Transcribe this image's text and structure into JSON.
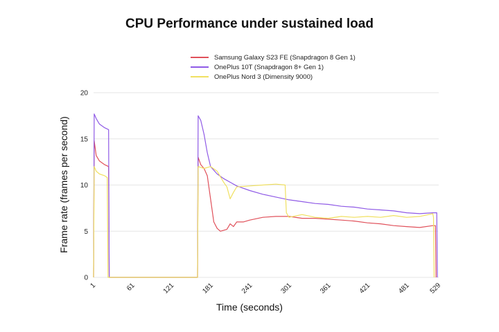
{
  "chart_data": {
    "type": "line",
    "title": "CPU Performance under sustained load",
    "xlabel": "Time (seconds)",
    "ylabel": "Frame rate (frames per second)",
    "xlim": [
      1,
      529
    ],
    "ylim": [
      0,
      20
    ],
    "x_ticks": [
      1,
      61,
      121,
      181,
      241,
      301,
      361,
      421,
      481,
      529
    ],
    "y_ticks": [
      0,
      5,
      10,
      15,
      20
    ],
    "grid": "horizontal",
    "legend_position": "top-right",
    "series": [
      {
        "name": "Samsung Galaxy S23 FE (Snapdragon 8 Gen 1)",
        "color": "#e0505a",
        "points": [
          [
            1,
            0
          ],
          [
            2,
            14.8
          ],
          [
            5,
            13.2
          ],
          [
            10,
            12.6
          ],
          [
            18,
            12.2
          ],
          [
            24,
            12.0
          ],
          [
            25,
            0
          ],
          [
            160,
            0
          ],
          [
            161,
            13.0
          ],
          [
            165,
            12.2
          ],
          [
            170,
            11.8
          ],
          [
            175,
            11.0
          ],
          [
            180,
            8.5
          ],
          [
            185,
            6.0
          ],
          [
            190,
            5.3
          ],
          [
            195,
            5.0
          ],
          [
            200,
            5.1
          ],
          [
            205,
            5.2
          ],
          [
            210,
            5.8
          ],
          [
            215,
            5.5
          ],
          [
            220,
            6.0
          ],
          [
            230,
            6.0
          ],
          [
            240,
            6.2
          ],
          [
            260,
            6.5
          ],
          [
            280,
            6.6
          ],
          [
            300,
            6.6
          ],
          [
            320,
            6.4
          ],
          [
            340,
            6.4
          ],
          [
            360,
            6.3
          ],
          [
            380,
            6.2
          ],
          [
            400,
            6.1
          ],
          [
            420,
            5.9
          ],
          [
            440,
            5.8
          ],
          [
            460,
            5.6
          ],
          [
            480,
            5.5
          ],
          [
            500,
            5.4
          ],
          [
            520,
            5.6
          ],
          [
            524,
            5.6
          ],
          [
            525,
            0
          ]
        ]
      },
      {
        "name": "OnePlus 10T (Snapdragon 8+ Gen 1)",
        "color": "#8f5ae6",
        "points": [
          [
            1,
            0
          ],
          [
            2,
            17.7
          ],
          [
            5,
            17.2
          ],
          [
            10,
            16.6
          ],
          [
            18,
            16.2
          ],
          [
            24,
            16.0
          ],
          [
            25,
            0
          ],
          [
            160,
            0
          ],
          [
            161,
            17.5
          ],
          [
            165,
            17.0
          ],
          [
            170,
            15.5
          ],
          [
            175,
            13.5
          ],
          [
            180,
            12.0
          ],
          [
            190,
            11.2
          ],
          [
            200,
            10.7
          ],
          [
            210,
            10.3
          ],
          [
            220,
            9.9
          ],
          [
            240,
            9.4
          ],
          [
            260,
            9.0
          ],
          [
            280,
            8.7
          ],
          [
            300,
            8.4
          ],
          [
            320,
            8.2
          ],
          [
            340,
            8.0
          ],
          [
            360,
            7.9
          ],
          [
            380,
            7.7
          ],
          [
            400,
            7.6
          ],
          [
            420,
            7.4
          ],
          [
            440,
            7.3
          ],
          [
            460,
            7.2
          ],
          [
            480,
            7.0
          ],
          [
            500,
            6.9
          ],
          [
            520,
            7.0
          ],
          [
            526,
            7.0
          ],
          [
            527,
            0
          ]
        ]
      },
      {
        "name": "OnePlus Nord 3 (Dimensity 9000)",
        "color": "#f0e060",
        "points": [
          [
            1,
            0
          ],
          [
            2,
            12.0
          ],
          [
            5,
            11.5
          ],
          [
            10,
            11.2
          ],
          [
            18,
            11.0
          ],
          [
            22,
            10.8
          ],
          [
            23,
            0
          ],
          [
            160,
            0
          ],
          [
            161,
            12.0
          ],
          [
            170,
            11.8
          ],
          [
            180,
            12.0
          ],
          [
            190,
            11.5
          ],
          [
            200,
            10.3
          ],
          [
            205,
            9.8
          ],
          [
            210,
            8.5
          ],
          [
            215,
            9.2
          ],
          [
            220,
            9.8
          ],
          [
            240,
            9.9
          ],
          [
            260,
            10.0
          ],
          [
            280,
            10.1
          ],
          [
            294,
            10.0
          ],
          [
            296,
            7.0
          ],
          [
            300,
            6.5
          ],
          [
            320,
            6.8
          ],
          [
            340,
            6.5
          ],
          [
            360,
            6.4
          ],
          [
            380,
            6.6
          ],
          [
            400,
            6.5
          ],
          [
            420,
            6.6
          ],
          [
            440,
            6.5
          ],
          [
            460,
            6.7
          ],
          [
            480,
            6.5
          ],
          [
            500,
            6.6
          ],
          [
            520,
            6.9
          ],
          [
            521,
            6.5
          ],
          [
            522,
            0
          ]
        ]
      }
    ]
  }
}
